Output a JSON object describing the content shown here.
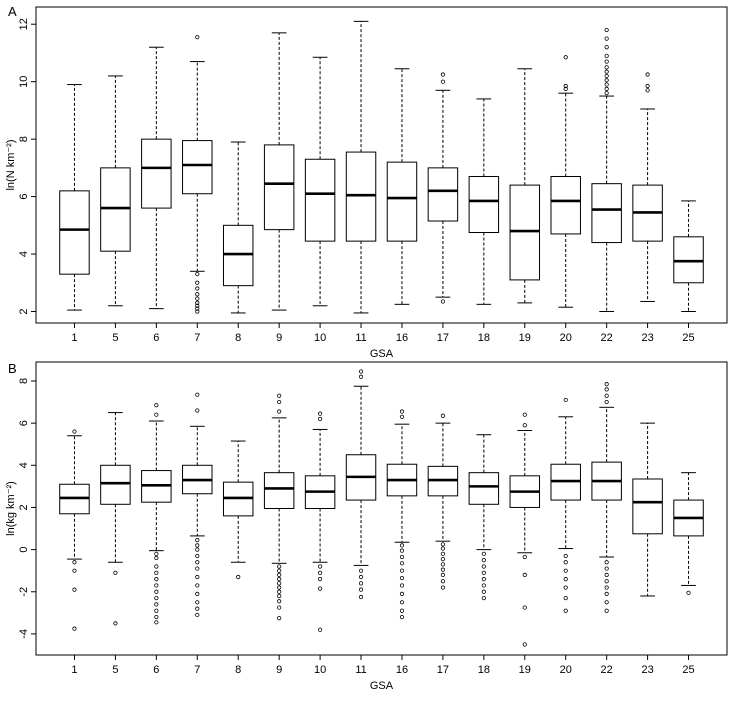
{
  "chart_data": [
    {
      "type": "box",
      "panel_label": "A",
      "xlabel": "GSA",
      "ylabel": "ln(N km⁻²)",
      "ylim": [
        1.6,
        12.6
      ],
      "yticks": [
        "2",
        "4",
        "6",
        "8",
        "10",
        "12"
      ],
      "categories": [
        "1",
        "5",
        "6",
        "7",
        "8",
        "9",
        "10",
        "11",
        "16",
        "17",
        "18",
        "19",
        "20",
        "22",
        "23",
        "25"
      ],
      "boxes": [
        {
          "min": 2.05,
          "q1": 3.3,
          "median": 4.85,
          "q3": 6.2,
          "max": 9.9,
          "outliers": []
        },
        {
          "min": 2.2,
          "q1": 4.1,
          "median": 5.6,
          "q3": 7.0,
          "max": 10.2,
          "outliers": []
        },
        {
          "min": 2.1,
          "q1": 5.6,
          "median": 7.0,
          "q3": 8.0,
          "max": 11.2,
          "outliers": []
        },
        {
          "min": 3.4,
          "q1": 6.1,
          "median": 7.1,
          "q3": 7.95,
          "max": 10.7,
          "outliers": [
            11.55,
            3.3,
            3.0,
            2.8,
            2.6,
            2.45,
            2.3,
            2.2,
            2.1,
            2.0
          ]
        },
        {
          "min": 1.95,
          "q1": 2.9,
          "median": 4.0,
          "q3": 5.0,
          "max": 7.9,
          "outliers": []
        },
        {
          "min": 2.05,
          "q1": 4.85,
          "median": 6.45,
          "q3": 7.8,
          "max": 11.7,
          "outliers": []
        },
        {
          "min": 2.2,
          "q1": 4.45,
          "median": 6.1,
          "q3": 7.3,
          "max": 10.85,
          "outliers": []
        },
        {
          "min": 1.95,
          "q1": 4.45,
          "median": 6.05,
          "q3": 7.55,
          "max": 12.1,
          "outliers": []
        },
        {
          "min": 2.25,
          "q1": 4.45,
          "median": 5.95,
          "q3": 7.2,
          "max": 10.45,
          "outliers": []
        },
        {
          "min": 2.5,
          "q1": 5.15,
          "median": 6.2,
          "q3": 7.0,
          "max": 9.7,
          "outliers": [
            10.25,
            10.0,
            2.35
          ]
        },
        {
          "min": 2.25,
          "q1": 4.75,
          "median": 5.85,
          "q3": 6.7,
          "max": 9.4,
          "outliers": []
        },
        {
          "min": 2.3,
          "q1": 3.1,
          "median": 4.8,
          "q3": 6.4,
          "max": 10.45,
          "outliers": []
        },
        {
          "min": 2.15,
          "q1": 4.7,
          "median": 5.85,
          "q3": 6.7,
          "max": 9.6,
          "outliers": [
            10.85,
            9.85,
            9.75
          ]
        },
        {
          "min": 2.0,
          "q1": 4.4,
          "median": 5.55,
          "q3": 6.45,
          "max": 9.5,
          "outliers": [
            11.8,
            11.5,
            11.2,
            10.9,
            10.7,
            10.5,
            10.35,
            10.2,
            10.05,
            9.9,
            9.75,
            9.6
          ]
        },
        {
          "min": 2.35,
          "q1": 4.45,
          "median": 5.45,
          "q3": 6.4,
          "max": 9.05,
          "outliers": [
            10.25,
            9.85,
            9.7
          ]
        },
        {
          "min": 2.0,
          "q1": 3.0,
          "median": 3.75,
          "q3": 4.6,
          "max": 5.85,
          "outliers": []
        }
      ]
    },
    {
      "type": "box",
      "panel_label": "B",
      "xlabel": "GSA",
      "ylabel": "ln(kg km⁻²)",
      "ylim": [
        -5.0,
        8.9
      ],
      "yticks": [
        "-4",
        "-2",
        "0",
        "2",
        "4",
        "6",
        "8"
      ],
      "categories": [
        "1",
        "5",
        "6",
        "7",
        "8",
        "9",
        "10",
        "11",
        "16",
        "17",
        "18",
        "19",
        "20",
        "22",
        "23",
        "25"
      ],
      "boxes": [
        {
          "min": -0.45,
          "q1": 1.7,
          "median": 2.45,
          "q3": 3.1,
          "max": 5.4,
          "outliers": [
            5.6,
            -0.6,
            -1.0,
            -1.9,
            -3.75
          ]
        },
        {
          "min": -0.6,
          "q1": 2.15,
          "median": 3.15,
          "q3": 4.0,
          "max": 6.5,
          "outliers": [
            -1.1,
            -3.5
          ]
        },
        {
          "min": -0.05,
          "q1": 2.25,
          "median": 3.05,
          "q3": 3.75,
          "max": 6.1,
          "outliers": [
            6.85,
            6.4,
            -0.2,
            -0.4,
            -0.8,
            -1.1,
            -1.4,
            -1.7,
            -2.0,
            -2.3,
            -2.6,
            -2.9,
            -3.2,
            -3.45
          ]
        },
        {
          "min": 0.65,
          "q1": 2.65,
          "median": 3.3,
          "q3": 4.0,
          "max": 5.85,
          "outliers": [
            7.35,
            6.6,
            0.45,
            0.2,
            0.0,
            -0.3,
            -0.6,
            -0.9,
            -1.3,
            -1.7,
            -2.1,
            -2.5,
            -2.8,
            -3.1
          ]
        },
        {
          "min": -0.6,
          "q1": 1.6,
          "median": 2.45,
          "q3": 3.2,
          "max": 5.15,
          "outliers": [
            -1.3
          ]
        },
        {
          "min": -0.65,
          "q1": 1.95,
          "median": 2.9,
          "q3": 3.65,
          "max": 6.25,
          "outliers": [
            7.3,
            7.0,
            6.55,
            -0.8,
            -1.0,
            -1.2,
            -1.4,
            -1.6,
            -1.8,
            -2.0,
            -2.2,
            -2.45,
            -2.75,
            -3.25
          ]
        },
        {
          "min": -0.6,
          "q1": 1.95,
          "median": 2.75,
          "q3": 3.5,
          "max": 5.7,
          "outliers": [
            6.45,
            6.2,
            -0.8,
            -1.1,
            -1.4,
            -1.85,
            -3.8
          ]
        },
        {
          "min": -0.75,
          "q1": 2.35,
          "median": 3.45,
          "q3": 4.5,
          "max": 7.75,
          "outliers": [
            8.45,
            8.2,
            -1.0,
            -1.3,
            -1.6,
            -1.9,
            -2.25
          ]
        },
        {
          "min": 0.35,
          "q1": 2.55,
          "median": 3.3,
          "q3": 4.05,
          "max": 5.95,
          "outliers": [
            6.55,
            6.3,
            0.2,
            -0.05,
            -0.35,
            -0.65,
            -1.0,
            -1.35,
            -1.7,
            -2.1,
            -2.5,
            -2.9,
            -3.2
          ]
        },
        {
          "min": 0.4,
          "q1": 2.55,
          "median": 3.3,
          "q3": 3.95,
          "max": 6.0,
          "outliers": [
            6.35,
            0.25,
            0.05,
            -0.2,
            -0.45,
            -0.7,
            -0.95,
            -1.2,
            -1.5,
            -1.8
          ]
        },
        {
          "min": 0.0,
          "q1": 2.15,
          "median": 3.0,
          "q3": 3.65,
          "max": 5.45,
          "outliers": [
            -0.2,
            -0.5,
            -0.8,
            -1.1,
            -1.4,
            -1.7,
            -2.0,
            -2.3
          ]
        },
        {
          "min": -0.15,
          "q1": 2.0,
          "median": 2.75,
          "q3": 3.5,
          "max": 5.65,
          "outliers": [
            6.4,
            5.9,
            -0.35,
            -1.2,
            -2.75,
            -4.5
          ]
        },
        {
          "min": 0.05,
          "q1": 2.35,
          "median": 3.25,
          "q3": 4.05,
          "max": 6.3,
          "outliers": [
            7.1,
            -0.3,
            -0.6,
            -1.0,
            -1.4,
            -1.8,
            -2.3,
            -2.9
          ]
        },
        {
          "min": -0.35,
          "q1": 2.35,
          "median": 3.25,
          "q3": 4.15,
          "max": 6.75,
          "outliers": [
            7.85,
            7.6,
            7.3,
            7.0,
            -0.6,
            -0.9,
            -1.2,
            -1.5,
            -1.8,
            -2.1,
            -2.5,
            -2.9
          ]
        },
        {
          "min": -2.2,
          "q1": 0.75,
          "median": 2.25,
          "q3": 3.35,
          "max": 6.0,
          "outliers": []
        },
        {
          "min": -1.7,
          "q1": 0.65,
          "median": 1.5,
          "q3": 2.35,
          "max": 3.65,
          "outliers": [
            -2.05
          ]
        }
      ]
    }
  ]
}
